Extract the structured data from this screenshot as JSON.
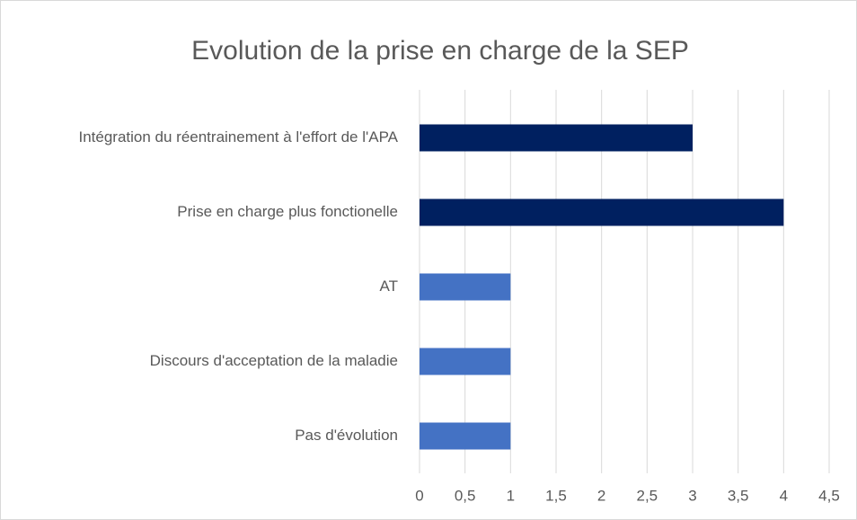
{
  "chart_data": {
    "type": "bar",
    "orientation": "horizontal",
    "title": "Evolution de la prise en charge de la SEP",
    "categories": [
      "Intégration du réentrainement à l'effort de l'APA",
      "Prise en charge plus fonctionelle",
      "AT",
      "Discours d'acceptation de la maladie",
      "Pas d'évolution"
    ],
    "values": [
      3,
      4,
      1,
      1,
      1
    ],
    "colors": [
      "#002060",
      "#002060",
      "#4472c4",
      "#4472c4",
      "#4472c4"
    ],
    "xlim": [
      0,
      4.5
    ],
    "xticks": [
      0,
      {
        "value": 0.5,
        "label": "0,5"
      },
      1,
      {
        "value": 1.5,
        "label": "1,5"
      },
      2,
      {
        "value": 2.5,
        "label": "2,5"
      },
      3,
      {
        "value": 3.5,
        "label": "3,5"
      },
      4,
      {
        "value": 4.5,
        "label": "4,5"
      }
    ],
    "grid": true
  }
}
